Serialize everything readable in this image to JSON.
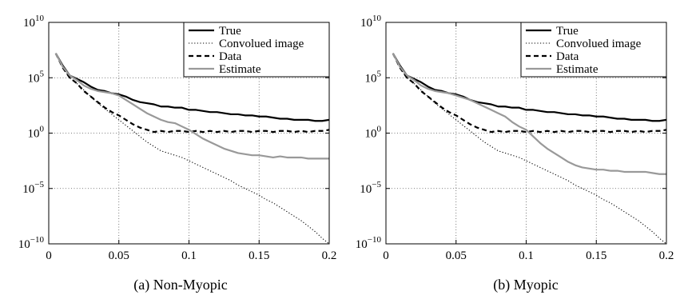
{
  "chart_data": [
    {
      "type": "line",
      "caption": "(a) Non-Myopic",
      "xlim": [
        0,
        0.2
      ],
      "ylim_log10": [
        -10,
        10
      ],
      "y_scale": "log",
      "grid": true,
      "legend_placement": "top-right",
      "x_ticks": [
        {
          "value": 0,
          "label": "0"
        },
        {
          "value": 0.05,
          "label": "0.05"
        },
        {
          "value": 0.1,
          "label": "0.1"
        },
        {
          "value": 0.15,
          "label": "0.15"
        },
        {
          "value": 0.2,
          "label": "0.2"
        }
      ],
      "y_ticks": [
        {
          "value": 10,
          "base": "10",
          "exp": "10"
        },
        {
          "value": 5,
          "base": "10",
          "exp": "5"
        },
        {
          "value": 0,
          "base": "10",
          "exp": "0"
        },
        {
          "value": -5,
          "base": "10",
          "exp": "−5"
        },
        {
          "value": -10,
          "base": "10",
          "exp": "−10"
        }
      ],
      "series": [
        {
          "name": "True",
          "color": "#000000",
          "dash": "solid",
          "width": 2.2,
          "x": [
            0.005,
            0.01,
            0.015,
            0.02,
            0.025,
            0.03,
            0.035,
            0.04,
            0.045,
            0.05,
            0.055,
            0.06,
            0.065,
            0.07,
            0.075,
            0.08,
            0.085,
            0.09,
            0.095,
            0.1,
            0.105,
            0.11,
            0.115,
            0.12,
            0.125,
            0.13,
            0.135,
            0.14,
            0.145,
            0.15,
            0.155,
            0.16,
            0.165,
            0.17,
            0.175,
            0.18,
            0.185,
            0.19,
            0.195,
            0.2
          ],
          "y": [
            7.2,
            6.1,
            5.2,
            4.9,
            4.6,
            4.2,
            3.9,
            3.8,
            3.6,
            3.5,
            3.3,
            3.0,
            2.8,
            2.7,
            2.6,
            2.4,
            2.4,
            2.3,
            2.3,
            2.1,
            2.1,
            2.0,
            1.9,
            1.9,
            1.8,
            1.7,
            1.7,
            1.6,
            1.6,
            1.5,
            1.5,
            1.4,
            1.3,
            1.3,
            1.2,
            1.2,
            1.2,
            1.1,
            1.1,
            1.2
          ]
        },
        {
          "name": "Convolued image",
          "color": "#000000",
          "dash": "dotted",
          "width": 1.1,
          "x": [
            0.005,
            0.01,
            0.015,
            0.02,
            0.025,
            0.03,
            0.035,
            0.04,
            0.045,
            0.05,
            0.055,
            0.06,
            0.065,
            0.07,
            0.075,
            0.08,
            0.085,
            0.09,
            0.095,
            0.1,
            0.105,
            0.11,
            0.115,
            0.12,
            0.125,
            0.13,
            0.135,
            0.14,
            0.145,
            0.15,
            0.155,
            0.16,
            0.165,
            0.17,
            0.175,
            0.18,
            0.185,
            0.19,
            0.195,
            0.2
          ],
          "y": [
            7.2,
            5.9,
            5.0,
            4.5,
            3.9,
            3.3,
            2.7,
            2.2,
            1.7,
            1.2,
            0.7,
            0.2,
            -0.3,
            -0.8,
            -1.2,
            -1.6,
            -1.8,
            -2.0,
            -2.2,
            -2.5,
            -2.8,
            -3.1,
            -3.4,
            -3.7,
            -4.0,
            -4.3,
            -4.7,
            -5.0,
            -5.3,
            -5.6,
            -6.0,
            -6.3,
            -6.7,
            -7.1,
            -7.5,
            -7.9,
            -8.4,
            -8.9,
            -9.5,
            -10.0
          ]
        },
        {
          "name": "Data",
          "color": "#000000",
          "dash": "dashed",
          "width": 2.2,
          "x": [
            0.005,
            0.01,
            0.015,
            0.02,
            0.025,
            0.03,
            0.035,
            0.04,
            0.045,
            0.05,
            0.055,
            0.06,
            0.065,
            0.07,
            0.075,
            0.08,
            0.085,
            0.09,
            0.095,
            0.1,
            0.105,
            0.11,
            0.115,
            0.12,
            0.125,
            0.13,
            0.135,
            0.14,
            0.145,
            0.15,
            0.155,
            0.16,
            0.165,
            0.17,
            0.175,
            0.18,
            0.185,
            0.19,
            0.195,
            0.2
          ],
          "y": [
            7.2,
            5.9,
            5.0,
            4.5,
            3.8,
            3.3,
            2.8,
            2.3,
            1.9,
            1.6,
            1.2,
            0.8,
            0.5,
            0.3,
            0.1,
            0.2,
            0.1,
            0.2,
            0.2,
            0.1,
            0.2,
            0.1,
            0.2,
            0.1,
            0.2,
            0.1,
            0.2,
            0.2,
            0.1,
            0.2,
            0.2,
            0.1,
            0.2,
            0.2,
            0.1,
            0.2,
            0.1,
            0.2,
            0.2,
            0.3
          ]
        },
        {
          "name": "Estimate",
          "color": "#999999",
          "dash": "solid",
          "width": 2.2,
          "x": [
            0.005,
            0.01,
            0.015,
            0.02,
            0.025,
            0.03,
            0.035,
            0.04,
            0.045,
            0.05,
            0.055,
            0.06,
            0.065,
            0.07,
            0.075,
            0.08,
            0.085,
            0.09,
            0.095,
            0.1,
            0.105,
            0.11,
            0.115,
            0.12,
            0.125,
            0.13,
            0.135,
            0.14,
            0.145,
            0.15,
            0.155,
            0.16,
            0.165,
            0.17,
            0.175,
            0.18,
            0.185,
            0.19,
            0.195,
            0.2
          ],
          "y": [
            7.2,
            6.0,
            5.2,
            4.8,
            4.3,
            4.0,
            3.8,
            3.7,
            3.6,
            3.4,
            3.0,
            2.6,
            2.2,
            1.8,
            1.5,
            1.2,
            1.0,
            0.9,
            0.6,
            0.3,
            -0.1,
            -0.5,
            -0.8,
            -1.1,
            -1.4,
            -1.6,
            -1.8,
            -1.9,
            -2.0,
            -2.0,
            -2.1,
            -2.2,
            -2.1,
            -2.2,
            -2.2,
            -2.2,
            -2.3,
            -2.3,
            -2.3,
            -2.3
          ]
        }
      ]
    },
    {
      "type": "line",
      "caption": "(b) Myopic",
      "xlim": [
        0,
        0.2
      ],
      "ylim_log10": [
        -10,
        10
      ],
      "y_scale": "log",
      "grid": true,
      "legend_placement": "top-right",
      "x_ticks": [
        {
          "value": 0,
          "label": "0"
        },
        {
          "value": 0.05,
          "label": "0.05"
        },
        {
          "value": 0.1,
          "label": "0.1"
        },
        {
          "value": 0.15,
          "label": "0.15"
        },
        {
          "value": 0.2,
          "label": "0.2"
        }
      ],
      "y_ticks": [
        {
          "value": 10,
          "base": "10",
          "exp": "10"
        },
        {
          "value": 5,
          "base": "10",
          "exp": "5"
        },
        {
          "value": 0,
          "base": "10",
          "exp": "0"
        },
        {
          "value": -5,
          "base": "10",
          "exp": "−5"
        },
        {
          "value": -10,
          "base": "10",
          "exp": "−10"
        }
      ],
      "series": [
        {
          "name": "True",
          "color": "#000000",
          "dash": "solid",
          "width": 2.2,
          "x": [
            0.005,
            0.01,
            0.015,
            0.02,
            0.025,
            0.03,
            0.035,
            0.04,
            0.045,
            0.05,
            0.055,
            0.06,
            0.065,
            0.07,
            0.075,
            0.08,
            0.085,
            0.09,
            0.095,
            0.1,
            0.105,
            0.11,
            0.115,
            0.12,
            0.125,
            0.13,
            0.135,
            0.14,
            0.145,
            0.15,
            0.155,
            0.16,
            0.165,
            0.17,
            0.175,
            0.18,
            0.185,
            0.19,
            0.195,
            0.2
          ],
          "y": [
            7.2,
            6.1,
            5.2,
            4.9,
            4.6,
            4.2,
            3.9,
            3.8,
            3.6,
            3.5,
            3.3,
            3.0,
            2.8,
            2.7,
            2.6,
            2.4,
            2.4,
            2.3,
            2.3,
            2.1,
            2.1,
            2.0,
            1.9,
            1.9,
            1.8,
            1.7,
            1.7,
            1.6,
            1.6,
            1.5,
            1.5,
            1.4,
            1.3,
            1.3,
            1.2,
            1.2,
            1.2,
            1.1,
            1.1,
            1.2
          ]
        },
        {
          "name": "Convolued image",
          "color": "#000000",
          "dash": "dotted",
          "width": 1.1,
          "x": [
            0.005,
            0.01,
            0.015,
            0.02,
            0.025,
            0.03,
            0.035,
            0.04,
            0.045,
            0.05,
            0.055,
            0.06,
            0.065,
            0.07,
            0.075,
            0.08,
            0.085,
            0.09,
            0.095,
            0.1,
            0.105,
            0.11,
            0.115,
            0.12,
            0.125,
            0.13,
            0.135,
            0.14,
            0.145,
            0.15,
            0.155,
            0.16,
            0.165,
            0.17,
            0.175,
            0.18,
            0.185,
            0.19,
            0.195,
            0.2
          ],
          "y": [
            7.2,
            5.9,
            5.0,
            4.5,
            3.9,
            3.3,
            2.7,
            2.2,
            1.7,
            1.2,
            0.7,
            0.2,
            -0.3,
            -0.8,
            -1.2,
            -1.6,
            -1.8,
            -2.0,
            -2.2,
            -2.5,
            -2.8,
            -3.1,
            -3.4,
            -3.7,
            -4.0,
            -4.3,
            -4.7,
            -5.0,
            -5.3,
            -5.6,
            -6.0,
            -6.3,
            -6.7,
            -7.1,
            -7.5,
            -7.9,
            -8.4,
            -8.9,
            -9.5,
            -10.0
          ]
        },
        {
          "name": "Data",
          "color": "#000000",
          "dash": "dashed",
          "width": 2.2,
          "x": [
            0.005,
            0.01,
            0.015,
            0.02,
            0.025,
            0.03,
            0.035,
            0.04,
            0.045,
            0.05,
            0.055,
            0.06,
            0.065,
            0.07,
            0.075,
            0.08,
            0.085,
            0.09,
            0.095,
            0.1,
            0.105,
            0.11,
            0.115,
            0.12,
            0.125,
            0.13,
            0.135,
            0.14,
            0.145,
            0.15,
            0.155,
            0.16,
            0.165,
            0.17,
            0.175,
            0.18,
            0.185,
            0.19,
            0.195,
            0.2
          ],
          "y": [
            7.2,
            5.9,
            5.0,
            4.5,
            3.8,
            3.3,
            2.8,
            2.3,
            1.9,
            1.6,
            1.2,
            0.8,
            0.5,
            0.3,
            0.1,
            0.2,
            0.1,
            0.2,
            0.2,
            0.1,
            0.2,
            0.1,
            0.2,
            0.1,
            0.2,
            0.1,
            0.2,
            0.2,
            0.1,
            0.2,
            0.2,
            0.1,
            0.2,
            0.2,
            0.1,
            0.2,
            0.1,
            0.2,
            0.2,
            0.3
          ]
        },
        {
          "name": "Estimate",
          "color": "#999999",
          "dash": "solid",
          "width": 2.2,
          "x": [
            0.005,
            0.01,
            0.015,
            0.02,
            0.025,
            0.03,
            0.035,
            0.04,
            0.045,
            0.05,
            0.055,
            0.06,
            0.065,
            0.07,
            0.075,
            0.08,
            0.085,
            0.09,
            0.095,
            0.1,
            0.105,
            0.11,
            0.115,
            0.12,
            0.125,
            0.13,
            0.135,
            0.14,
            0.145,
            0.15,
            0.155,
            0.16,
            0.165,
            0.17,
            0.175,
            0.18,
            0.185,
            0.19,
            0.195,
            0.2
          ],
          "y": [
            7.2,
            6.0,
            5.2,
            4.8,
            4.3,
            4.0,
            3.8,
            3.7,
            3.6,
            3.4,
            3.2,
            3.0,
            2.7,
            2.4,
            2.1,
            1.8,
            1.5,
            1.0,
            0.6,
            0.3,
            -0.3,
            -0.9,
            -1.4,
            -1.8,
            -2.2,
            -2.6,
            -2.9,
            -3.1,
            -3.2,
            -3.3,
            -3.3,
            -3.4,
            -3.4,
            -3.5,
            -3.5,
            -3.5,
            -3.5,
            -3.6,
            -3.7,
            -3.7
          ]
        }
      ]
    }
  ]
}
